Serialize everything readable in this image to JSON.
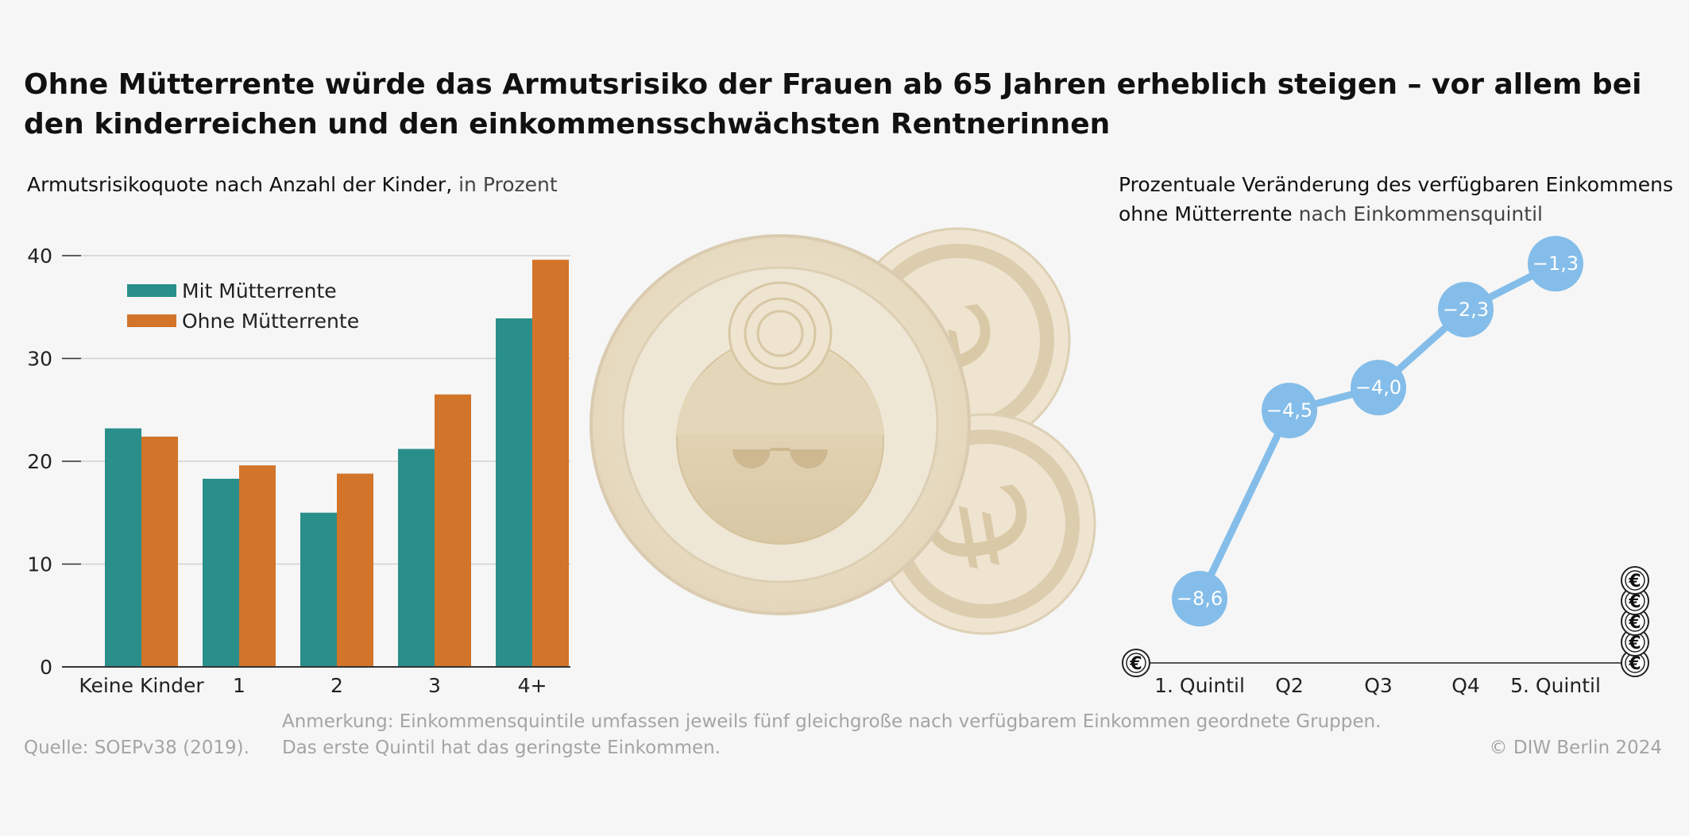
{
  "title": "Ohne Mütterrente würde das Armutsrisiko der Frauen ab 65 Jahren erheblich steigen – vor allem bei den kinderreichen und den einkommensschwächsten Rentnerinnen",
  "left_subtitle": {
    "main": "Armutsrisikoquote nach Anzahl der Kinder,",
    "unit": " in Prozent"
  },
  "right_subtitle": {
    "main_line1": "Prozentuale Veränderung des verfügbaren Einkommens",
    "main_line2": "ohne Mütterrente",
    "rest": " nach Einkommensquintil"
  },
  "footer": {
    "source": "Quelle: SOEPv38 (2019).",
    "note_line1": "Anmerkung: Einkommensquintile umfassen jeweils fünf gleichgroße nach verfügbarem Einkommen geordnete Gruppen.",
    "note_line2": "Das erste Quintil hat das geringste Einkommen.",
    "copyright": "© DIW Berlin 2024"
  },
  "colors": {
    "teal": "#2a8f8a",
    "orange": "#d2742a",
    "light_blue": "#84bde9",
    "coin": "#e8ddc6"
  },
  "euro_symbol": "€",
  "chart_data": [
    {
      "type": "bar",
      "categories": [
        "Keine Kinder",
        "1",
        "2",
        "3",
        "4+"
      ],
      "series": [
        {
          "name": "Mit Mütterrente",
          "values": [
            23.2,
            18.3,
            15.0,
            21.2,
            33.9
          ]
        },
        {
          "name": "Ohne Mütterrente",
          "values": [
            22.4,
            19.6,
            18.8,
            26.5,
            39.6
          ]
        }
      ],
      "yticks": [
        0,
        10,
        20,
        30,
        40
      ],
      "ylim": [
        0,
        40
      ],
      "legend": "top-left",
      "grid": true
    },
    {
      "type": "line",
      "categories": [
        "1. Quintil",
        "Q2",
        "Q3",
        "Q4",
        "5. Quintil"
      ],
      "values": [
        -8.6,
        -4.5,
        -4.0,
        -2.3,
        -1.3
      ],
      "labels": [
        "−8,6",
        "−4,5",
        "−4,0",
        "−2,3",
        "−1,3"
      ],
      "ylim": [
        -10,
        0
      ]
    }
  ]
}
